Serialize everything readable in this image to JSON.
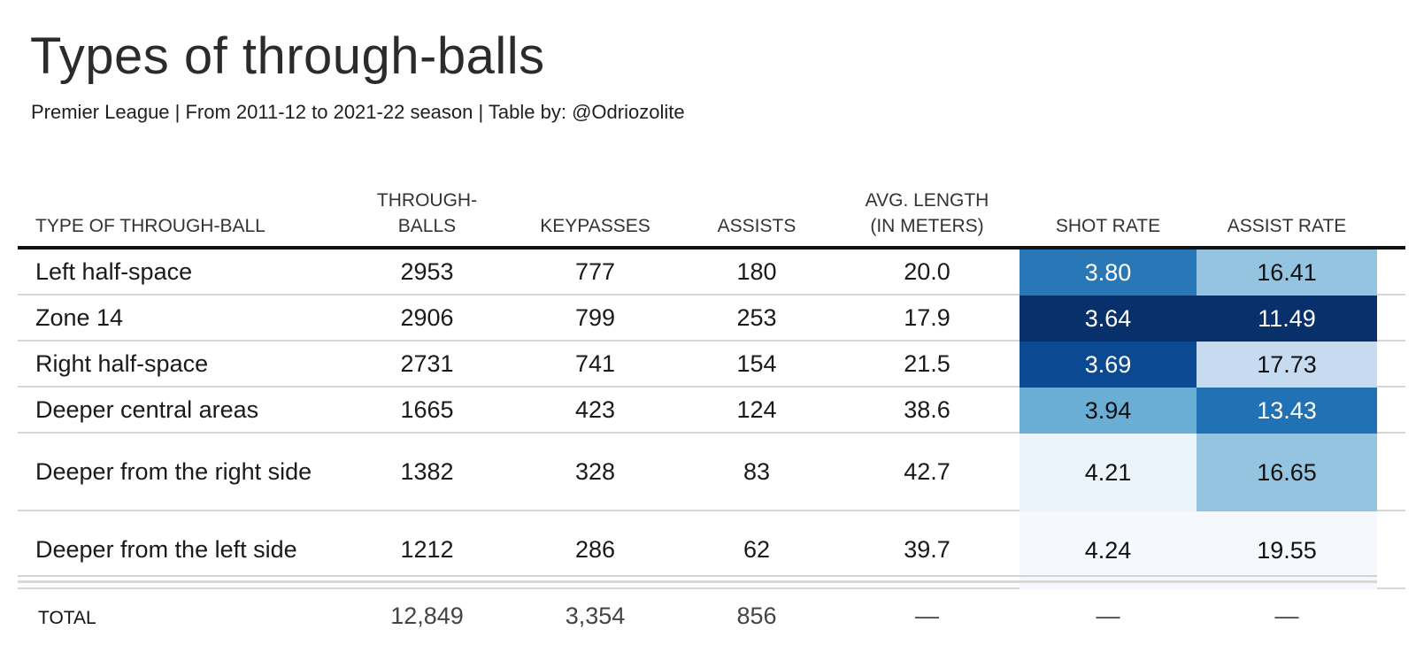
{
  "title": "Types of through-balls",
  "subtitle": "Premier League | From 2011-12 to 2021-22 season | Table by: @Odriozolite",
  "chart_data": {
    "type": "table",
    "columns": [
      {
        "key": "type",
        "label": "TYPE OF THROUGH-BALL"
      },
      {
        "key": "through_balls",
        "label": "THROUGH- BALLS"
      },
      {
        "key": "keypasses",
        "label": "KEYPASSES"
      },
      {
        "key": "assists",
        "label": "ASSISTS"
      },
      {
        "key": "avg_length",
        "label": "AVG. LENGTH (IN METERS)"
      },
      {
        "key": "shot_rate",
        "label": "SHOT RATE"
      },
      {
        "key": "assist_rate",
        "label": "ASSIST RATE"
      }
    ],
    "rows": [
      {
        "type": "Left half-space",
        "through_balls": "2953",
        "keypasses": "777",
        "assists": "180",
        "avg_length": "20.0",
        "shot_rate": "3.80",
        "assist_rate": "16.41"
      },
      {
        "type": "Zone 14",
        "through_balls": "2906",
        "keypasses": "799",
        "assists": "253",
        "avg_length": "17.9",
        "shot_rate": "3.64",
        "assist_rate": "11.49"
      },
      {
        "type": "Right half-space",
        "through_balls": "2731",
        "keypasses": "741",
        "assists": "154",
        "avg_length": "21.5",
        "shot_rate": "3.69",
        "assist_rate": "17.73"
      },
      {
        "type": "Deeper central areas",
        "through_balls": "1665",
        "keypasses": "423",
        "assists": "124",
        "avg_length": "38.6",
        "shot_rate": "3.94",
        "assist_rate": "13.43"
      },
      {
        "type": "Deeper from the right side",
        "through_balls": "1382",
        "keypasses": "328",
        "assists": "83",
        "avg_length": "42.7",
        "shot_rate": "4.21",
        "assist_rate": "16.65"
      },
      {
        "type": "Deeper from the left side",
        "through_balls": "1212",
        "keypasses": "286",
        "assists": "62",
        "avg_length": "39.7",
        "shot_rate": "4.24",
        "assist_rate": "19.55"
      }
    ],
    "cell_colors": {
      "shot_rate": [
        "#2a77b8",
        "#08306b",
        "#0b4a92",
        "#6aaed6",
        "#ebf3fb",
        "#f5f9fe"
      ],
      "assist_rate": [
        "#94c4df",
        "#08306b",
        "#c6dbef",
        "#2171b5",
        "#94c4df",
        "#f5f9fe"
      ]
    },
    "cell_text_colors": {
      "shot_rate": [
        "#ffffff",
        "#ffffff",
        "#ffffff",
        "#111111",
        "#111111",
        "#111111"
      ],
      "assist_rate": [
        "#111111",
        "#ffffff",
        "#111111",
        "#ffffff",
        "#111111",
        "#111111"
      ]
    },
    "footer": {
      "type": "TOTAL",
      "through_balls": "12,849",
      "keypasses": "3,354",
      "assists": "856",
      "avg_length": "—",
      "shot_rate": "—",
      "assist_rate": "—"
    }
  }
}
